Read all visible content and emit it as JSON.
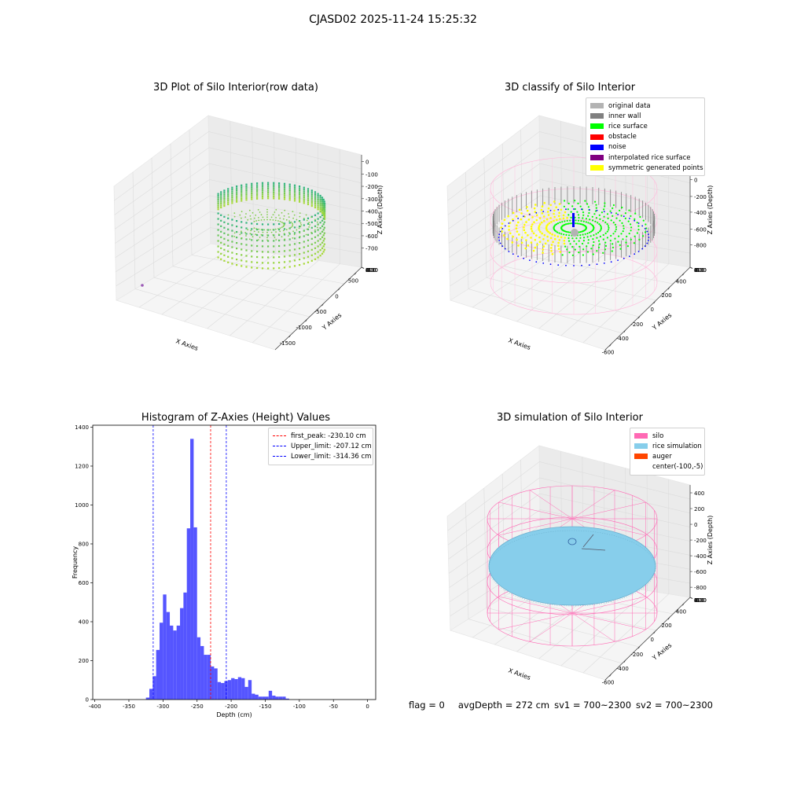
{
  "figure": {
    "title": "CJASD02 2025-11-24 15:25:32"
  },
  "colors": {
    "raw_low": "#2fb47c",
    "raw_high": "#b5de2b",
    "original_data": "#b3b3b3",
    "inner_wall": "#808080",
    "rice_surface": "#00ff00",
    "obstacle": "#ff0000",
    "noise": "#0000ff",
    "interpolated_rice_surface": "#800080",
    "symmetric_generated_points": "#ffff00",
    "silo": "#ff69b4",
    "rice_simulation": "#87ceeb",
    "auger": "#ff4500",
    "hist_bar": "#4c4cff",
    "first_peak": "#ff0000",
    "limit": "#0000ff"
  },
  "chart_data": [
    {
      "type": "scatter",
      "title": "3D Plot of Silo Interior(row data)",
      "xlabel": "X Axies",
      "ylabel": "Y Axies",
      "zlabel": "Z Axies (Depth)",
      "xticks": [
        "-1500",
        "-1000",
        "-500",
        "0",
        "500"
      ],
      "yticks": [
        "-600",
        "-400",
        "-200",
        "0",
        "200",
        "400",
        "600"
      ],
      "zticks": [
        "0",
        "-100",
        "-200",
        "-300",
        "-400",
        "-500",
        "-600",
        "-700"
      ],
      "xlim": [
        -1700,
        600
      ],
      "ylim": [
        -650,
        650
      ],
      "zlim": [
        -780,
        30
      ]
    },
    {
      "type": "scatter",
      "title": "3D classify of Silo Interior",
      "xlabel": "X Axies",
      "ylabel": "Y Axies",
      "zlabel": "Z Axies (Depth)",
      "xticks": [
        "-600",
        "-400",
        "-200",
        "0",
        "200",
        "400"
      ],
      "yticks": [
        "-600",
        "-400",
        "-200",
        "0",
        "200",
        "400",
        "600"
      ],
      "zticks": [
        "200",
        "0",
        "-200",
        "-400",
        "-600",
        "-800"
      ],
      "zticks_partial": [
        "00"
      ],
      "legend": [
        {
          "label": "original data",
          "color": "#b3b3b3"
        },
        {
          "label": "inner wall",
          "color": "#808080"
        },
        {
          "label": "rice surface",
          "color": "#00ff00"
        },
        {
          "label": "obstacle",
          "color": "#ff0000"
        },
        {
          "label": "noise",
          "color": "#0000ff"
        },
        {
          "label": "interpolated rice surface",
          "color": "#800080"
        },
        {
          "label": "symmetric generated points",
          "color": "#ffff00"
        }
      ],
      "xlim": [
        -700,
        500
      ],
      "ylim": [
        -650,
        650
      ],
      "zlim": [
        -900,
        450
      ]
    },
    {
      "type": "bar",
      "title": "Histogram of Z-Axies (Height) Values",
      "xlabel": "Depth (cm)",
      "ylabel": "Frequency",
      "xticks": [
        -400,
        -350,
        -300,
        -250,
        -200,
        -150,
        -100,
        -50,
        0
      ],
      "yticks": [
        0,
        200,
        400,
        600,
        800,
        1000,
        1200,
        1400
      ],
      "xlim": [
        -403,
        12
      ],
      "ylim": [
        0,
        1410
      ],
      "bin_start": -325,
      "bin_width": 5,
      "values": [
        10,
        55,
        120,
        255,
        395,
        540,
        450,
        380,
        355,
        380,
        470,
        550,
        880,
        1340,
        885,
        320,
        275,
        230,
        230,
        170,
        160,
        90,
        85,
        95,
        100,
        110,
        105,
        115,
        110,
        65,
        100,
        30,
        25,
        15,
        15,
        15,
        45,
        20,
        15,
        15,
        15,
        5
      ],
      "vlines": [
        {
          "label": "first_peak: -230.10 cm",
          "x": -230.1,
          "color": "#ff0000"
        },
        {
          "label": "Upper_limit: -207.12 cm",
          "x": -207.12,
          "color": "#0000ff"
        },
        {
          "label": "Lower_limit: -314.36 cm",
          "x": -314.36,
          "color": "#0000ff"
        }
      ]
    },
    {
      "type": "scatter",
      "title": "3D simulation of Silo Interior",
      "xlabel": "X Axies",
      "ylabel": "Y Axies",
      "zlabel": "Z Axies (Depth)",
      "xticks": [
        "-600",
        "-400",
        "-200",
        "0",
        "200",
        "400"
      ],
      "yticks": [
        "-600",
        "-400",
        "-200",
        "0",
        "200",
        "400",
        "600"
      ],
      "zticks": [
        "400",
        "200",
        "0",
        "-200",
        "-400",
        "-600",
        "-800"
      ],
      "legend": [
        {
          "label": "silo",
          "color": "#ff69b4"
        },
        {
          "label": "rice simulation",
          "color": "#87ceeb"
        },
        {
          "label": "auger",
          "color": "#ff4500"
        },
        {
          "label": "center(-100,-5)",
          "color": ""
        }
      ],
      "xlim": [
        -700,
        500
      ],
      "ylim": [
        -650,
        650
      ],
      "zlim": [
        -900,
        450
      ]
    }
  ],
  "footer": {
    "flag": "flag = 0",
    "avg_depth": "avgDepth = 272 cm",
    "sv1": "sv1 = 700~2300",
    "sv2": "sv2 = 700~2300"
  }
}
